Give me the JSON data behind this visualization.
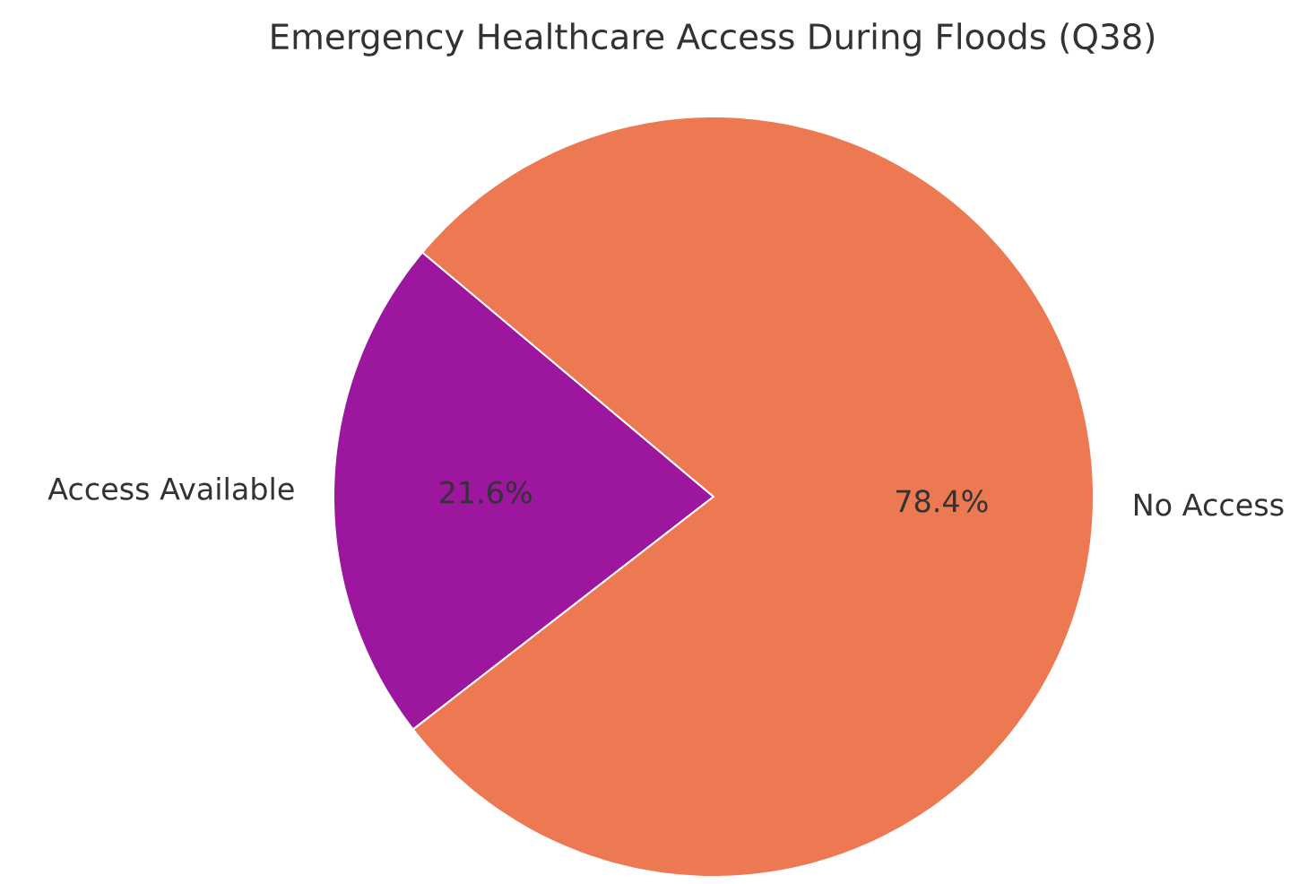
{
  "chart_data": {
    "type": "pie",
    "title": "Emergency Healthcare Access During Floods (Q38)",
    "categories": [
      "Access Available",
      "No Access"
    ],
    "values": [
      21.6,
      78.4
    ],
    "colors": [
      "#9c179e",
      "#ed7953"
    ],
    "value_labels": [
      "21.6%",
      "78.4%"
    ]
  }
}
